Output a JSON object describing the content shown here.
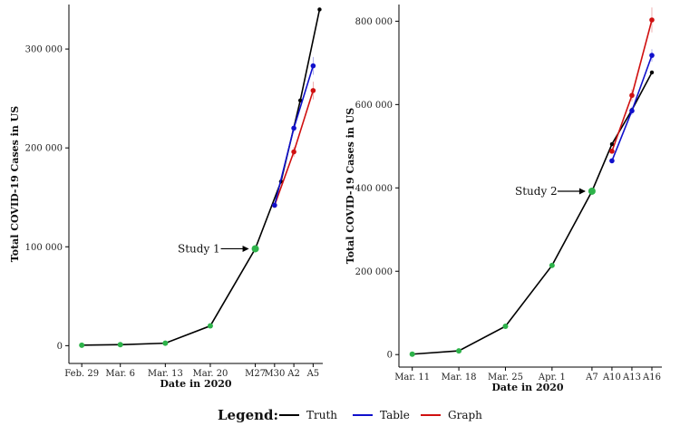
{
  "chart_data": [
    {
      "type": "line",
      "xlabel": "Date in 2020",
      "ylabel": "Total COVID-19 Cases in US",
      "ylim": [
        -18000,
        345000
      ],
      "yticks": [
        0,
        100000,
        200000,
        300000
      ],
      "ytick_labels": [
        "0",
        "100 000",
        "200 000",
        "300 000"
      ],
      "xticks": [
        {
          "day": 0,
          "label": "Feb. 29"
        },
        {
          "day": 6,
          "label": "Mar. 6"
        },
        {
          "day": 13,
          "label": "Mar. 13"
        },
        {
          "day": 20,
          "label": "Mar. 20"
        },
        {
          "day": 27,
          "label": "M27"
        },
        {
          "day": 30,
          "label": "M30"
        },
        {
          "day": 33,
          "label": "A2"
        },
        {
          "day": 36,
          "label": "A5"
        }
      ],
      "xlim": [
        -2,
        37.5
      ],
      "annotation": {
        "text": "Study 1",
        "day": 27,
        "value": 98000
      },
      "truth": {
        "x": [
          0,
          6,
          13,
          20,
          27,
          31,
          34,
          37
        ],
        "y": [
          500,
          1000,
          2500,
          20000,
          98000,
          166000,
          248000,
          340000
        ]
      },
      "study_points": {
        "x": [
          0,
          6,
          13,
          20,
          27
        ],
        "y": [
          500,
          1000,
          2500,
          20000,
          98000
        ]
      },
      "table": {
        "x": [
          30,
          33,
          36
        ],
        "y": [
          142000,
          220000,
          283000
        ],
        "err": [
          2000,
          4000,
          9000
        ]
      },
      "graph": {
        "x": [
          30,
          33,
          36
        ],
        "y": [
          142000,
          196000,
          258000
        ],
        "err": [
          2000,
          5000,
          9000
        ]
      }
    },
    {
      "type": "line",
      "xlabel": "Date in 2020",
      "ylabel": "Total COVID-19 Cases in US",
      "ylim": [
        -30000,
        840000
      ],
      "yticks": [
        0,
        200000,
        400000,
        600000,
        800000
      ],
      "ytick_labels": [
        "0",
        "200 000",
        "400 000",
        "600 000",
        "800 000"
      ],
      "xticks": [
        {
          "day": 0,
          "label": "Mar. 11"
        },
        {
          "day": 7,
          "label": "Mar. 18"
        },
        {
          "day": 14,
          "label": "Mar. 25"
        },
        {
          "day": 21,
          "label": "Apr. 1"
        },
        {
          "day": 27,
          "label": "A7"
        },
        {
          "day": 30,
          "label": "A10"
        },
        {
          "day": 33,
          "label": "A13"
        },
        {
          "day": 36,
          "label": "A16"
        }
      ],
      "xlim": [
        -2,
        37.5
      ],
      "annotation": {
        "text": "Study 2",
        "day": 27,
        "value": 392000
      },
      "truth": {
        "x": [
          0,
          7,
          14,
          21,
          27,
          30,
          33,
          36
        ],
        "y": [
          1000,
          9000,
          68000,
          214000,
          392000,
          505000,
          587000,
          677000
        ]
      },
      "study_points": {
        "x": [
          0,
          7,
          14,
          21,
          27
        ],
        "y": [
          1000,
          9000,
          68000,
          214000,
          392000
        ]
      },
      "table": {
        "x": [
          30,
          33,
          36
        ],
        "y": [
          465000,
          585000,
          718000
        ],
        "err": [
          5000,
          10000,
          15000
        ]
      },
      "graph": {
        "x": [
          30,
          33,
          36
        ],
        "y": [
          488000,
          622000,
          803000
        ],
        "err": [
          5000,
          15000,
          30000
        ]
      }
    }
  ],
  "legend": {
    "title": "Legend:",
    "items": [
      {
        "label": "Truth",
        "color": "#000000"
      },
      {
        "label": "Table",
        "color": "#1010cc"
      },
      {
        "label": "Graph",
        "color": "#d01010"
      }
    ]
  },
  "colors": {
    "truth": "#000000",
    "table": "#1010cc",
    "graph": "#d01010",
    "study": "#2db34a"
  }
}
